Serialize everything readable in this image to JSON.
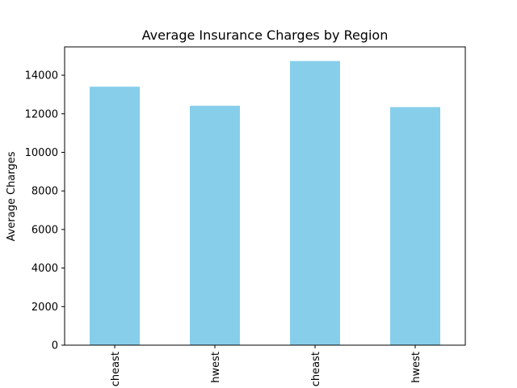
{
  "chart_data": {
    "type": "bar",
    "title": "Average Insurance Charges by Region",
    "xlabel": "",
    "ylabel": "Average Charges",
    "categories": [
      "northeast",
      "northwest",
      "southeast",
      "southwest"
    ],
    "category_tick_labels": [
      "cheast",
      "hwest",
      "cheast",
      "hwest"
    ],
    "values": [
      13406,
      12418,
      14735,
      12347
    ],
    "ylim": [
      0,
      15470
    ],
    "yticks": [
      0,
      2000,
      4000,
      6000,
      8000,
      10000,
      12000,
      14000
    ],
    "bar_color": "#87CEEB",
    "grid": false,
    "legend": "none"
  }
}
